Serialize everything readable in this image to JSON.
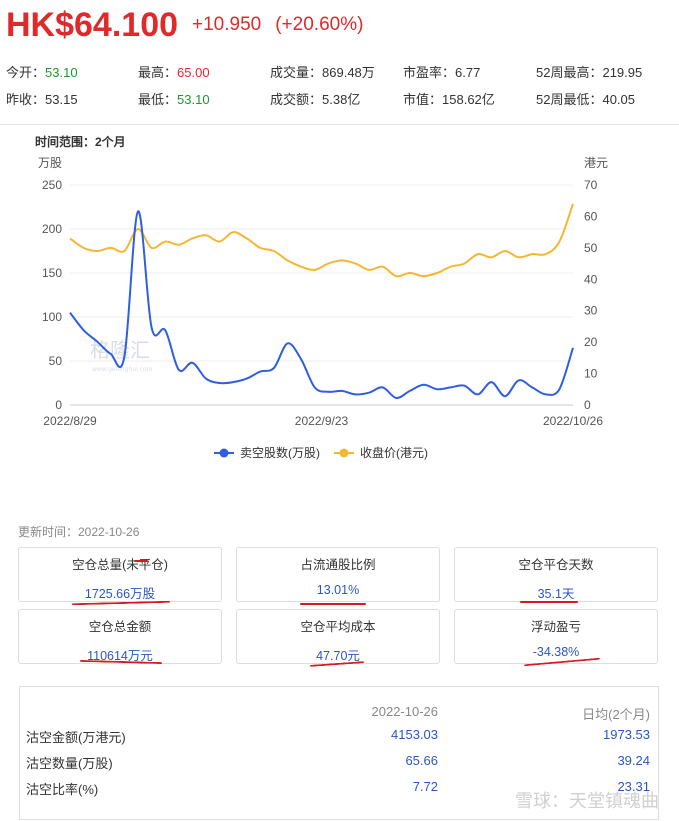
{
  "quote": {
    "price": "HK$64.100",
    "change": "+10.950",
    "change_pct": "(+20.60%)"
  },
  "stats": [
    {
      "label": "今开：",
      "value": "53.10",
      "tone": "down"
    },
    {
      "label": "最高：",
      "value": "65.00",
      "tone": "up"
    },
    {
      "label": "成交量：",
      "value": "869.48万",
      "tone": ""
    },
    {
      "label": "市盈率：",
      "value": "6.77",
      "tone": ""
    },
    {
      "label": "52周最高：",
      "value": "219.95",
      "tone": ""
    },
    {
      "label": "昨收：",
      "value": "53.15",
      "tone": ""
    },
    {
      "label": "最低：",
      "value": "53.10",
      "tone": "down"
    },
    {
      "label": "成交额：",
      "value": "5.38亿",
      "tone": ""
    },
    {
      "label": "市值：",
      "value": "158.62亿",
      "tone": ""
    },
    {
      "label": "52周最低：",
      "value": "40.05",
      "tone": ""
    }
  ],
  "range_label": "时间范围：2个月",
  "chart_data": {
    "type": "line",
    "y_left": {
      "label": "万股",
      "ticks": [
        0,
        50,
        100,
        150,
        200,
        250
      ],
      "range": [
        0,
        250
      ]
    },
    "y_right": {
      "label": "港元",
      "ticks": [
        0,
        10,
        20,
        30,
        40,
        50,
        60,
        70
      ],
      "range": [
        0,
        70
      ]
    },
    "x_labels": [
      "2022/8/29",
      "2022/9/23",
      "2022/10/26"
    ],
    "series": [
      {
        "name": "卖空股数(万股)",
        "axis": "left",
        "color": "#2f5fe0",
        "values": [
          105,
          85,
          72,
          58,
          55,
          220,
          88,
          85,
          40,
          48,
          30,
          25,
          26,
          30,
          38,
          42,
          70,
          52,
          20,
          15,
          16,
          12,
          14,
          20,
          8,
          16,
          23,
          18,
          20,
          22,
          12,
          26,
          10,
          28,
          20,
          12,
          18,
          65
        ]
      },
      {
        "name": "收盘价(港元)",
        "axis": "right",
        "color": "#f5b731",
        "values": [
          53,
          50,
          49,
          50,
          49,
          56,
          50,
          52,
          51,
          53,
          54,
          52,
          55,
          53,
          50,
          49,
          46,
          44,
          43,
          45,
          46,
          45,
          43,
          44,
          41,
          42,
          41,
          42,
          44,
          45,
          48,
          47,
          49,
          47,
          48,
          48,
          52,
          64
        ]
      }
    ]
  },
  "watermark_chart": "格隆汇",
  "watermark_chart_sub": "www.gelonghui.com",
  "update_time": "更新时间：2022-10-26",
  "cards": [
    {
      "title": "空仓总量(未平仓)",
      "value": "1725.66万股"
    },
    {
      "title": "占流通股比例",
      "value": "13.01%"
    },
    {
      "title": "空仓平仓天数",
      "value": "35.1天"
    },
    {
      "title": "空仓总金额",
      "value": "110614万元"
    },
    {
      "title": "空仓平均成本",
      "value": "47.70元"
    },
    {
      "title": "浮动盈亏",
      "value": "-34.38%"
    }
  ],
  "table": {
    "headers": [
      "2022-10-26",
      "日均(2个月)"
    ],
    "rows": [
      {
        "label": "沽空金额(万港元)",
        "day": "4153.03",
        "avg": "1973.53"
      },
      {
        "label": "沽空数量(万股)",
        "day": "65.66",
        "avg": "39.24"
      },
      {
        "label": "沽空比率(%)",
        "day": "7.72",
        "avg": "23.31"
      }
    ]
  },
  "watermark_footer": "雪球：天堂镇魂曲",
  "colors": {
    "up": "#e0292b",
    "down": "#1a9a2a",
    "accent_blue": "#2b56c9",
    "annotation_red": "#d71920"
  }
}
